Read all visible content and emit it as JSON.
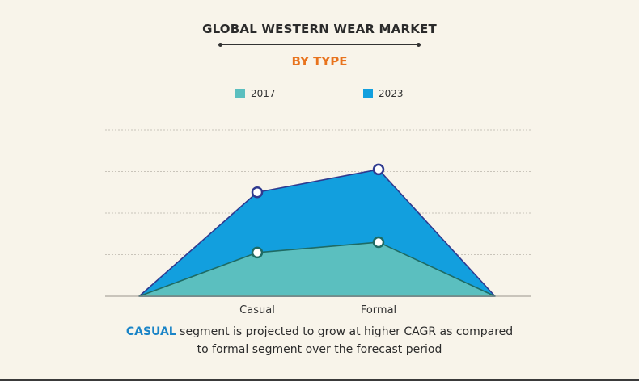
{
  "chart_data": {
    "type": "area",
    "title": "GLOBAL WESTERN WEAR MARKET",
    "subtitle": "BY TYPE",
    "categories": [
      "Casual",
      "Formal"
    ],
    "series": [
      {
        "name": "2017",
        "values": [
          1.05,
          1.3
        ],
        "color": "#5bbfbf",
        "line": "#1e6b64"
      },
      {
        "name": "2023",
        "values": [
          2.5,
          3.05
        ],
        "color": "#129fde",
        "line": "#2f3a8f"
      }
    ],
    "ylim": [
      0,
      4
    ],
    "grid": true,
    "legend_position": "top-center"
  },
  "caption": {
    "highlight": "CASUAL",
    "line1_rest": " segment is projected to grow at higher CAGR as compared",
    "line2": "to formal segment over the forecast period"
  }
}
